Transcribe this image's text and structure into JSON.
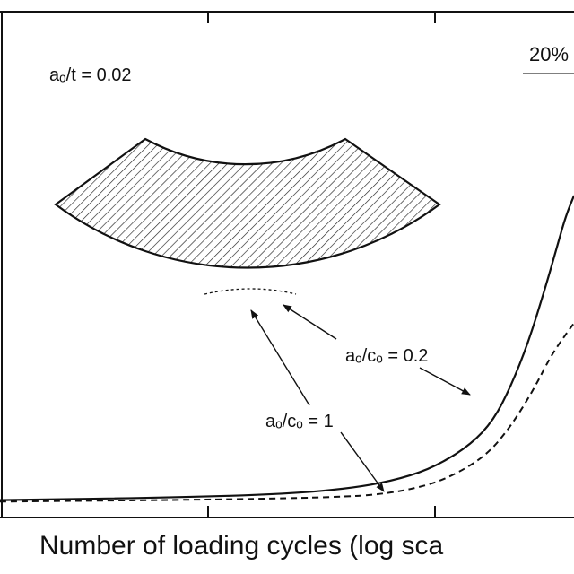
{
  "chart_data": {
    "type": "line",
    "xlabel": "Number of loading cycles (log sca",
    "x_scale": "log",
    "ylabel": "",
    "grid": false,
    "legend": "none",
    "series": [
      {
        "style": "solid",
        "points": [
          [
            0.0,
            0.01
          ],
          [
            0.3,
            0.018
          ],
          [
            0.5,
            0.03
          ],
          [
            0.62,
            0.05
          ],
          [
            0.7,
            0.08
          ],
          [
            0.76,
            0.12
          ],
          [
            0.82,
            0.19
          ],
          [
            0.86,
            0.27
          ],
          [
            0.89,
            0.38
          ],
          [
            0.92,
            0.52
          ],
          [
            0.95,
            0.7
          ],
          [
            0.97,
            0.83
          ],
          [
            0.985,
            0.93
          ],
          [
            1.0,
            1.0
          ]
        ]
      },
      {
        "style": "dashed",
        "points": [
          [
            0.0,
            0.005
          ],
          [
            0.4,
            0.012
          ],
          [
            0.6,
            0.02
          ],
          [
            0.68,
            0.032
          ],
          [
            0.75,
            0.06
          ],
          [
            0.8,
            0.1
          ],
          [
            0.85,
            0.16
          ],
          [
            0.89,
            0.25
          ],
          [
            0.93,
            0.37
          ],
          [
            0.96,
            0.48
          ],
          [
            0.99,
            0.56
          ],
          [
            1.0,
            0.585
          ]
        ]
      }
    ],
    "annotations": {
      "ratio_label": "aₒ/t = 0.02",
      "depth_label": "20%",
      "shape_02": "aₒ/cₒ = 0.2",
      "shape_1": "aₒ/cₒ = 1"
    }
  }
}
